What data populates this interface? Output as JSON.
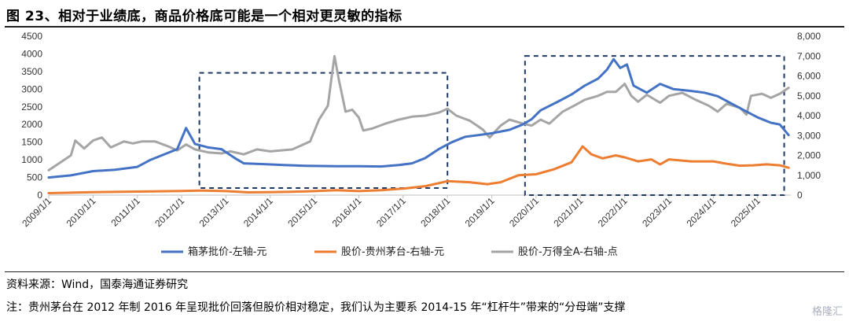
{
  "title": "图 23、相对于业绩底，商品价格底可能是一个相对更灵敏的指标",
  "source": "资料来源：Wind，国泰海通证券研究",
  "note": "注：贵州茅台在 2012 年制 2016 年呈现批价回落但股价相对稳定，我们认为主要系 2014-15 年“杠杆牛”带来的“分母端”支撑",
  "watermark": "格隆汇",
  "chart_data": {
    "type": "line",
    "x_ticks": [
      "2009/1/1",
      "2010/1/1",
      "2011/1/1",
      "2012/1/1",
      "2013/1/1",
      "2014/1/1",
      "2015/1/1",
      "2016/1/1",
      "2017/1/1",
      "2018/1/1",
      "2019/1/1",
      "2020/1/1",
      "2021/1/1",
      "2022/1/1",
      "2023/1/1",
      "2024/1/1",
      "2025/1/1"
    ],
    "x_range": [
      2009.0,
      2025.75
    ],
    "y_left": {
      "ticks": [
        "0",
        "500",
        "1000",
        "1500",
        "2000",
        "2500",
        "3000",
        "3500",
        "4000",
        "4500"
      ],
      "lim": [
        0,
        4500
      ]
    },
    "y_right": {
      "ticks": [
        "0",
        "1,000",
        "2,000",
        "3,000",
        "4,000",
        "5,000",
        "6,000",
        "7,000",
        "8,000"
      ],
      "lim": [
        0,
        8000
      ]
    },
    "series": [
      {
        "name": "箱茅批价-左轴-元",
        "axis": "left",
        "color": "#4472C4",
        "points": [
          [
            2009.0,
            500
          ],
          [
            2009.5,
            560
          ],
          [
            2010.0,
            680
          ],
          [
            2010.5,
            720
          ],
          [
            2011.0,
            800
          ],
          [
            2011.3,
            1000
          ],
          [
            2011.6,
            1150
          ],
          [
            2011.9,
            1300
          ],
          [
            2012.1,
            1900
          ],
          [
            2012.3,
            1450
          ],
          [
            2012.6,
            1350
          ],
          [
            2012.9,
            1300
          ],
          [
            2013.2,
            1050
          ],
          [
            2013.4,
            900
          ],
          [
            2013.8,
            880
          ],
          [
            2014.3,
            850
          ],
          [
            2014.8,
            830
          ],
          [
            2015.5,
            820
          ],
          [
            2016.0,
            820
          ],
          [
            2016.5,
            810
          ],
          [
            2016.9,
            850
          ],
          [
            2017.2,
            900
          ],
          [
            2017.5,
            1050
          ],
          [
            2017.8,
            1300
          ],
          [
            2018.1,
            1500
          ],
          [
            2018.4,
            1650
          ],
          [
            2018.7,
            1700
          ],
          [
            2019.0,
            1750
          ],
          [
            2019.4,
            1850
          ],
          [
            2019.7,
            2000
          ],
          [
            2019.9,
            2150
          ],
          [
            2020.1,
            2400
          ],
          [
            2020.5,
            2650
          ],
          [
            2020.8,
            2850
          ],
          [
            2021.1,
            3100
          ],
          [
            2021.4,
            3300
          ],
          [
            2021.6,
            3550
          ],
          [
            2021.75,
            3850
          ],
          [
            2021.9,
            3600
          ],
          [
            2022.05,
            3700
          ],
          [
            2022.2,
            3100
          ],
          [
            2022.5,
            2900
          ],
          [
            2022.8,
            3150
          ],
          [
            2023.1,
            3000
          ],
          [
            2023.5,
            2950
          ],
          [
            2023.8,
            2900
          ],
          [
            2024.1,
            2800
          ],
          [
            2024.4,
            2600
          ],
          [
            2024.7,
            2400
          ],
          [
            2025.0,
            2200
          ],
          [
            2025.3,
            2050
          ],
          [
            2025.5,
            2000
          ],
          [
            2025.7,
            1700
          ]
        ]
      },
      {
        "name": "股价-贵州茅台-右轴-元",
        "axis": "right",
        "color": "#ED7D31",
        "points": [
          [
            2009.0,
            100
          ],
          [
            2010.0,
            150
          ],
          [
            2011.0,
            180
          ],
          [
            2012.0,
            210
          ],
          [
            2012.5,
            230
          ],
          [
            2013.0,
            200
          ],
          [
            2013.5,
            140
          ],
          [
            2014.0,
            150
          ],
          [
            2014.5,
            170
          ],
          [
            2015.0,
            200
          ],
          [
            2015.5,
            250
          ],
          [
            2016.0,
            200
          ],
          [
            2016.5,
            250
          ],
          [
            2017.0,
            330
          ],
          [
            2017.5,
            450
          ],
          [
            2018.0,
            700
          ],
          [
            2018.5,
            650
          ],
          [
            2018.9,
            550
          ],
          [
            2019.2,
            650
          ],
          [
            2019.6,
            1000
          ],
          [
            2020.0,
            1050
          ],
          [
            2020.4,
            1300
          ],
          [
            2020.8,
            1650
          ],
          [
            2021.05,
            2450
          ],
          [
            2021.25,
            2050
          ],
          [
            2021.5,
            1850
          ],
          [
            2021.8,
            2000
          ],
          [
            2022.0,
            1900
          ],
          [
            2022.3,
            1700
          ],
          [
            2022.6,
            1800
          ],
          [
            2022.8,
            1550
          ],
          [
            2023.0,
            1800
          ],
          [
            2023.5,
            1700
          ],
          [
            2024.0,
            1700
          ],
          [
            2024.3,
            1580
          ],
          [
            2024.6,
            1480
          ],
          [
            2024.9,
            1500
          ],
          [
            2025.2,
            1550
          ],
          [
            2025.5,
            1500
          ],
          [
            2025.7,
            1380
          ]
        ]
      },
      {
        "name": "股价-万得全A-右轴-点",
        "axis": "right",
        "color": "#A5A5A5",
        "points": [
          [
            2009.0,
            1250
          ],
          [
            2009.5,
            2000
          ],
          [
            2009.6,
            2750
          ],
          [
            2009.8,
            2350
          ],
          [
            2010.0,
            2750
          ],
          [
            2010.2,
            2900
          ],
          [
            2010.4,
            2400
          ],
          [
            2010.7,
            2700
          ],
          [
            2010.9,
            2600
          ],
          [
            2011.1,
            2700
          ],
          [
            2011.4,
            2700
          ],
          [
            2011.7,
            2450
          ],
          [
            2011.9,
            2250
          ],
          [
            2012.1,
            2550
          ],
          [
            2012.3,
            2300
          ],
          [
            2012.6,
            2150
          ],
          [
            2012.9,
            2100
          ],
          [
            2013.1,
            2200
          ],
          [
            2013.4,
            2050
          ],
          [
            2013.7,
            2300
          ],
          [
            2014.0,
            2200
          ],
          [
            2014.5,
            2300
          ],
          [
            2014.9,
            2700
          ],
          [
            2015.1,
            3800
          ],
          [
            2015.3,
            4500
          ],
          [
            2015.4,
            6200
          ],
          [
            2015.45,
            7000
          ],
          [
            2015.55,
            5800
          ],
          [
            2015.7,
            4200
          ],
          [
            2015.85,
            4300
          ],
          [
            2016.0,
            3900
          ],
          [
            2016.1,
            3250
          ],
          [
            2016.3,
            3350
          ],
          [
            2016.6,
            3600
          ],
          [
            2016.9,
            3800
          ],
          [
            2017.2,
            3950
          ],
          [
            2017.5,
            4000
          ],
          [
            2017.8,
            4150
          ],
          [
            2018.0,
            4350
          ],
          [
            2018.2,
            4000
          ],
          [
            2018.5,
            3750
          ],
          [
            2018.8,
            3300
          ],
          [
            2018.95,
            2900
          ],
          [
            2019.2,
            3500
          ],
          [
            2019.4,
            3800
          ],
          [
            2019.7,
            3600
          ],
          [
            2019.9,
            3500
          ],
          [
            2020.1,
            3800
          ],
          [
            2020.3,
            3600
          ],
          [
            2020.6,
            4200
          ],
          [
            2020.9,
            4550
          ],
          [
            2021.1,
            4800
          ],
          [
            2021.4,
            5000
          ],
          [
            2021.6,
            5200
          ],
          [
            2021.8,
            5200
          ],
          [
            2022.0,
            5600
          ],
          [
            2022.15,
            5000
          ],
          [
            2022.3,
            4700
          ],
          [
            2022.5,
            5050
          ],
          [
            2022.8,
            4650
          ],
          [
            2023.0,
            5000
          ],
          [
            2023.3,
            5150
          ],
          [
            2023.6,
            4800
          ],
          [
            2023.9,
            4500
          ],
          [
            2024.1,
            4200
          ],
          [
            2024.3,
            4600
          ],
          [
            2024.6,
            4400
          ],
          [
            2024.75,
            4050
          ],
          [
            2024.85,
            5000
          ],
          [
            2025.1,
            5100
          ],
          [
            2025.3,
            4900
          ],
          [
            2025.5,
            5100
          ],
          [
            2025.7,
            5400
          ]
        ]
      }
    ],
    "annotations": [
      {
        "type": "dashed-box",
        "color": "#1F3864",
        "x": [
          2012.4,
          2018.0
        ],
        "y_left": [
          200,
          3460
        ]
      },
      {
        "type": "dashed-box",
        "color": "#1F3864",
        "x": [
          2019.75,
          2025.6
        ],
        "y_left": [
          0,
          3940
        ]
      }
    ]
  }
}
